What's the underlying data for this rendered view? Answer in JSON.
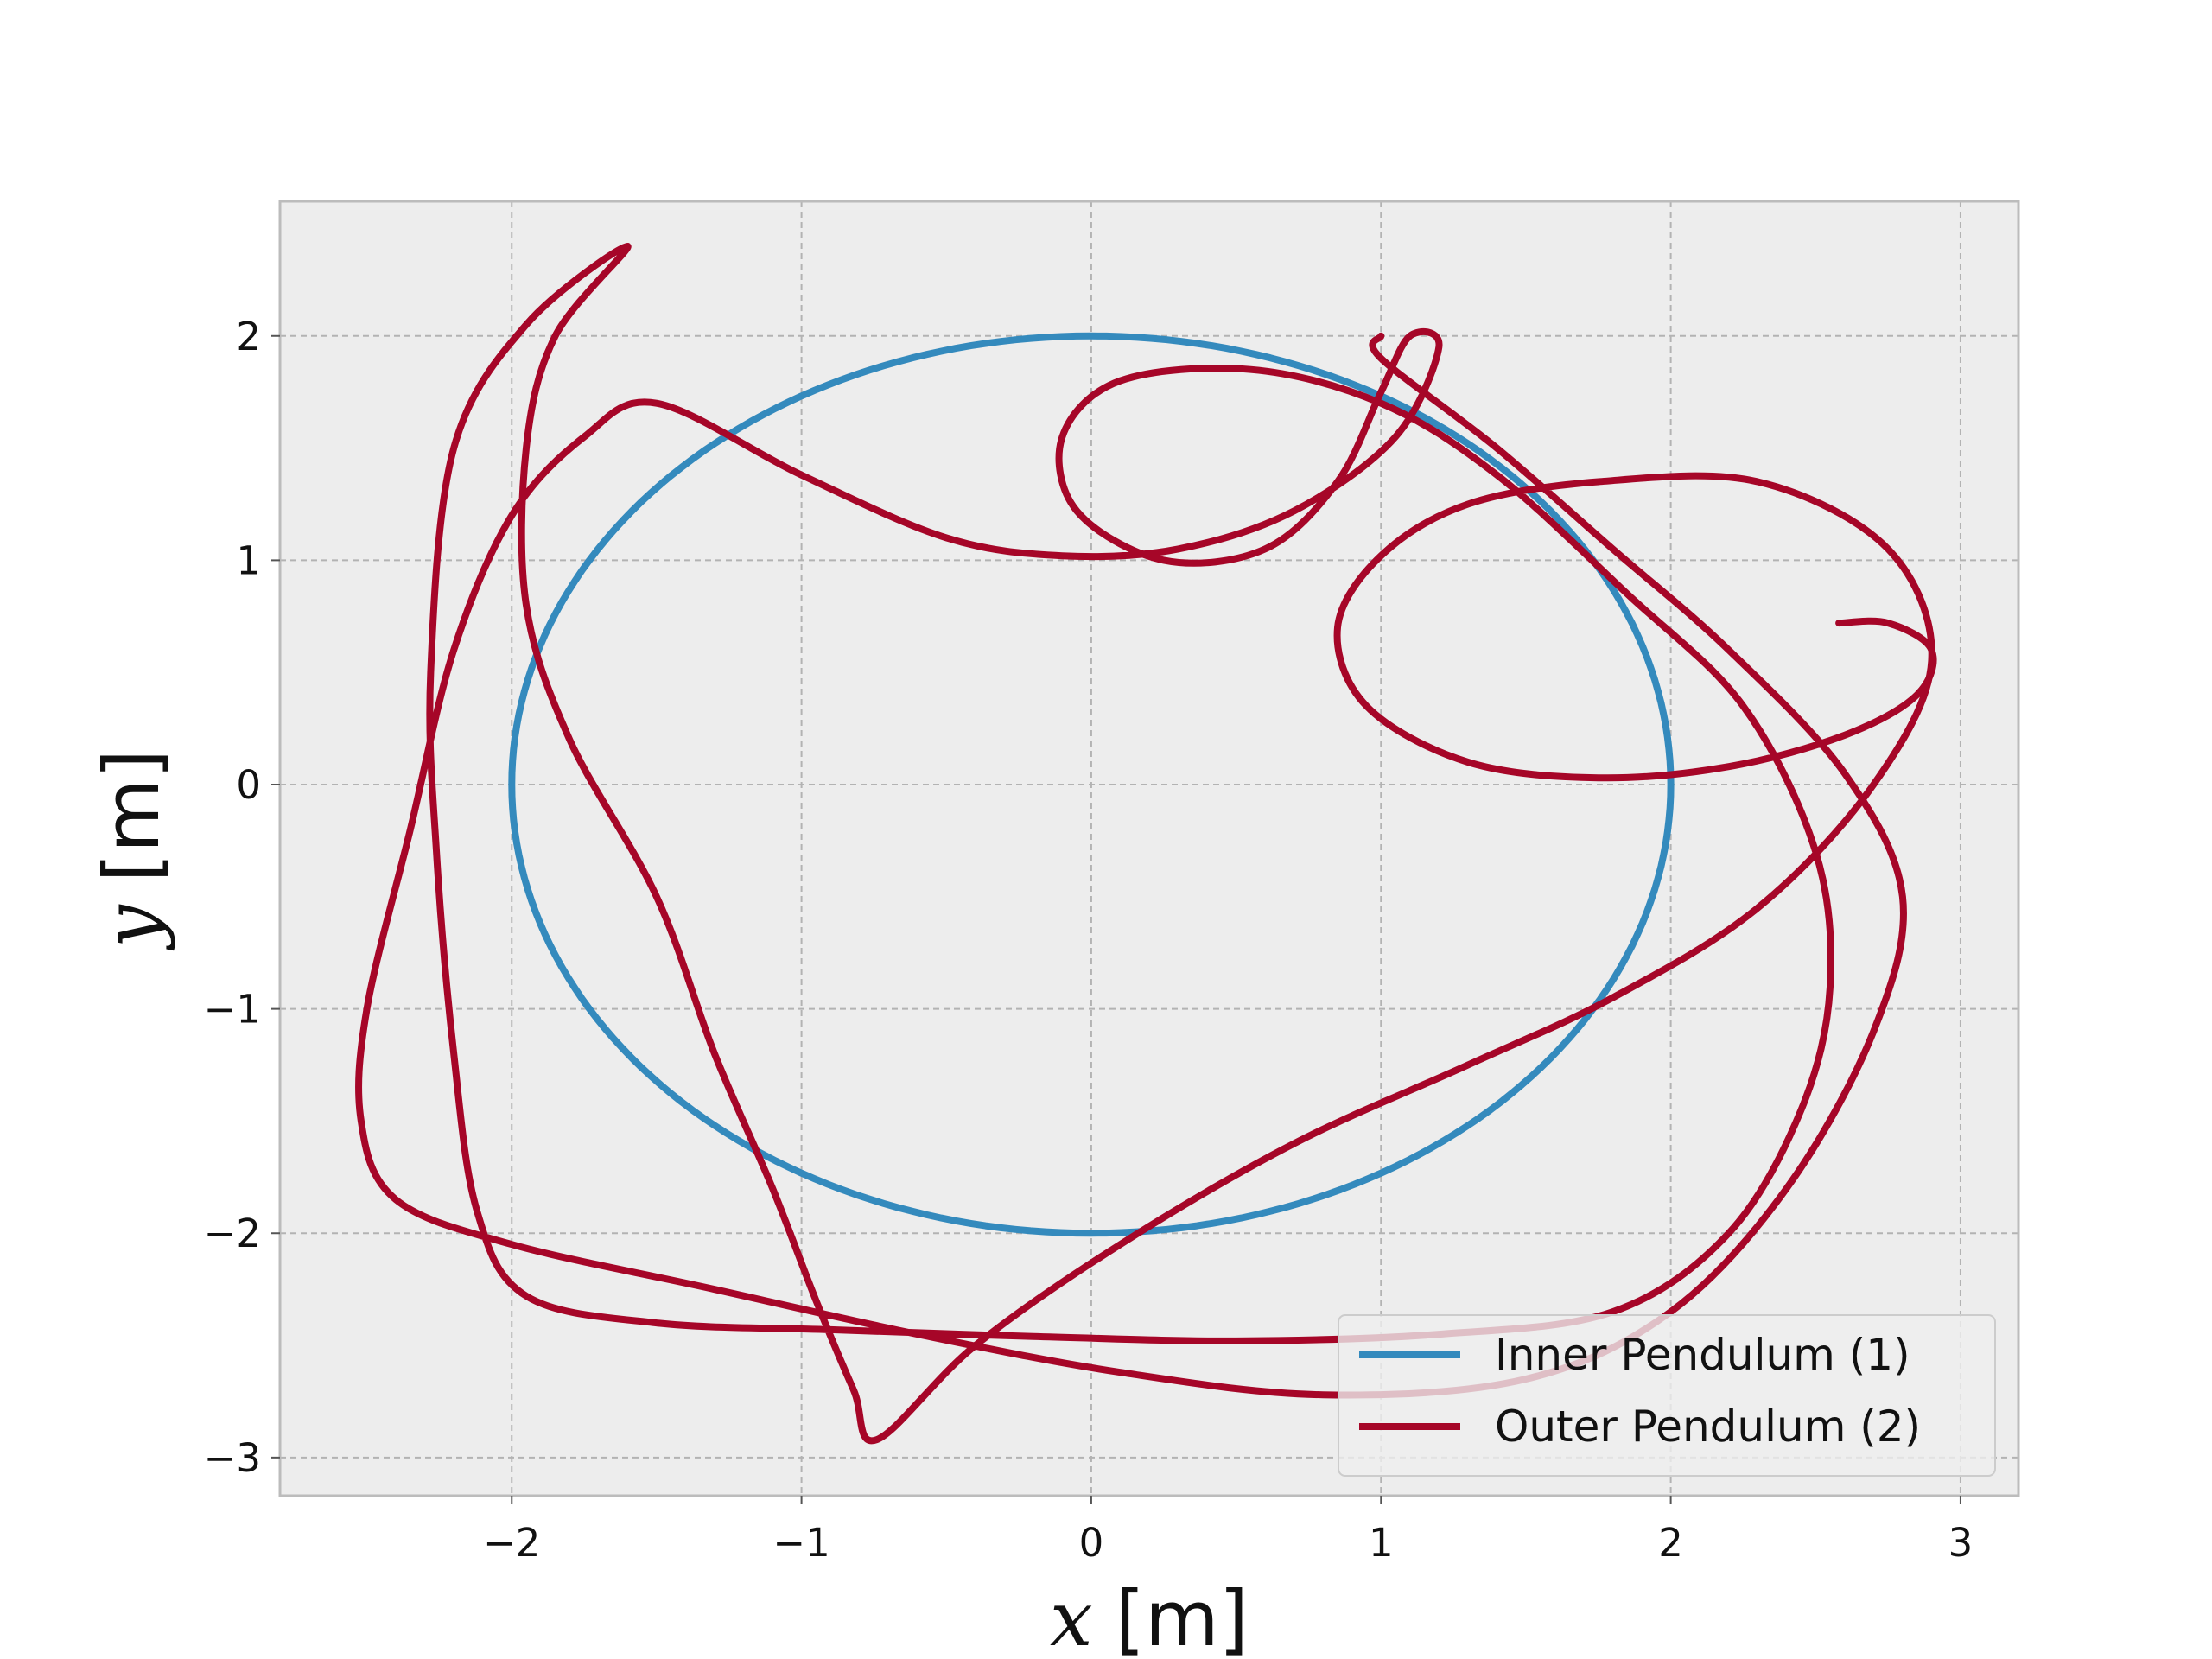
{
  "chart_data": {
    "type": "line",
    "xlabel_var": "x",
    "xlabel_unit": "[m]",
    "ylabel_var": "y",
    "ylabel_unit": "[m]",
    "xlim": [
      -2.8,
      3.2
    ],
    "ylim": [
      -3.17,
      2.6
    ],
    "xticks": [
      -2,
      -1,
      0,
      1,
      2,
      3
    ],
    "yticks": [
      -3,
      -2,
      -1,
      0,
      1,
      2
    ],
    "xtick_labels": [
      "−2",
      "−1",
      "0",
      "1",
      "2",
      "3"
    ],
    "ytick_labels": [
      "−3",
      "−2",
      "−1",
      "0",
      "1",
      "2"
    ],
    "grid": true,
    "plot_background": "#ededed",
    "legend_position": "lower right",
    "series": [
      {
        "name": "Inner Pendulum (1)",
        "color": "#348abd",
        "shape": "circle",
        "radius": 2
      },
      {
        "name": "Outer Pendulum (2)",
        "color": "#a60628",
        "points": [
          [
            2.58,
            0.72
          ],
          [
            2.75,
            0.72
          ],
          [
            2.9,
            0.6
          ],
          [
            2.85,
            0.4
          ],
          [
            2.6,
            0.22
          ],
          [
            2.2,
            0.08
          ],
          [
            1.75,
            0.03
          ],
          [
            1.3,
            0.1
          ],
          [
            0.95,
            0.35
          ],
          [
            0.85,
            0.7
          ],
          [
            1.0,
            1.02
          ],
          [
            1.3,
            1.25
          ],
          [
            1.75,
            1.35
          ],
          [
            2.3,
            1.35
          ],
          [
            2.75,
            1.05
          ],
          [
            2.9,
            0.55
          ],
          [
            2.7,
            0.0
          ],
          [
            2.3,
            -0.55
          ],
          [
            1.8,
            -0.95
          ],
          [
            1.3,
            -1.25
          ],
          [
            0.7,
            -1.6
          ],
          [
            0.1,
            -2.05
          ],
          [
            -0.4,
            -2.5
          ],
          [
            -0.74,
            -2.92
          ],
          [
            -0.82,
            -2.7
          ],
          [
            -0.95,
            -2.3
          ],
          [
            -1.1,
            -1.8
          ],
          [
            -1.3,
            -1.2
          ],
          [
            -1.5,
            -0.5
          ],
          [
            -1.8,
            0.2
          ],
          [
            -1.95,
            0.8
          ],
          [
            -1.95,
            1.5
          ],
          [
            -1.85,
            2.0
          ],
          [
            -1.6,
            2.4
          ],
          [
            -1.95,
            2.05
          ],
          [
            -2.2,
            1.5
          ],
          [
            -2.28,
            0.5
          ],
          [
            -2.26,
            -0.3
          ],
          [
            -2.2,
            -1.2
          ],
          [
            -2.12,
            -1.9
          ],
          [
            -1.95,
            -2.28
          ],
          [
            -1.5,
            -2.4
          ],
          [
            -0.9,
            -2.43
          ],
          [
            -0.2,
            -2.46
          ],
          [
            0.5,
            -2.48
          ],
          [
            1.2,
            -2.45
          ],
          [
            1.8,
            -2.35
          ],
          [
            2.2,
            -2.0
          ],
          [
            2.45,
            -1.45
          ],
          [
            2.55,
            -0.9
          ],
          [
            2.5,
            -0.3
          ],
          [
            2.25,
            0.35
          ],
          [
            1.85,
            0.85
          ],
          [
            1.4,
            1.38
          ],
          [
            1.0,
            1.7
          ],
          [
            0.55,
            1.85
          ],
          [
            0.1,
            1.8
          ],
          [
            -0.1,
            1.55
          ],
          [
            -0.05,
            1.22
          ],
          [
            0.25,
            1.0
          ],
          [
            0.6,
            1.05
          ],
          [
            0.85,
            1.35
          ],
          [
            1.0,
            1.75
          ],
          [
            1.1,
            2.0
          ],
          [
            1.2,
            1.95
          ],
          [
            1.05,
            1.55
          ],
          [
            0.7,
            1.22
          ],
          [
            0.3,
            1.05
          ],
          [
            -0.1,
            1.02
          ],
          [
            -0.5,
            1.1
          ],
          [
            -1.0,
            1.38
          ],
          [
            -1.5,
            1.7
          ],
          [
            -1.75,
            1.55
          ],
          [
            -2.0,
            1.2
          ],
          [
            -2.2,
            0.6
          ],
          [
            -2.35,
            -0.2
          ],
          [
            -2.5,
            -1.0
          ],
          [
            -2.52,
            -1.5
          ],
          [
            -2.4,
            -1.85
          ],
          [
            -2.0,
            -2.05
          ],
          [
            -1.3,
            -2.25
          ],
          [
            -0.6,
            -2.45
          ],
          [
            0.1,
            -2.62
          ],
          [
            0.8,
            -2.72
          ],
          [
            1.5,
            -2.65
          ],
          [
            2.0,
            -2.35
          ],
          [
            2.4,
            -1.8
          ],
          [
            2.7,
            -1.1
          ],
          [
            2.8,
            -0.5
          ],
          [
            2.6,
            0.05
          ],
          [
            2.2,
            0.6
          ],
          [
            1.8,
            1.05
          ],
          [
            1.4,
            1.5
          ],
          [
            1.0,
            1.9
          ],
          [
            1.0,
            2.0
          ]
        ]
      }
    ]
  }
}
